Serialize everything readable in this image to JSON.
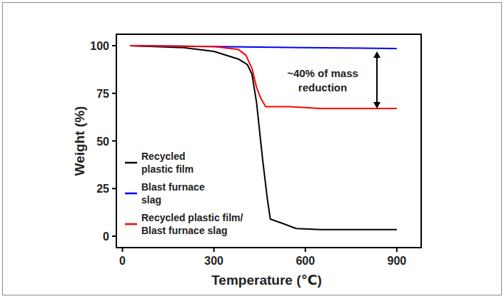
{
  "chart_data": {
    "type": "line",
    "x_label": "Temperature (℃)",
    "y_label": "Weight (%)",
    "annotation": "~40% of mass\nreduction",
    "xlim": [
      -20,
      980
    ],
    "ylim": [
      -6,
      106
    ],
    "xticks": [
      0,
      300,
      600,
      900
    ],
    "yticks": [
      0,
      25,
      50,
      75,
      100
    ],
    "grid": false,
    "legend": "lower left",
    "series": [
      {
        "name": "Recycled\nplastic film",
        "color": "#000000",
        "line_style": "solid",
        "marker": "none",
        "x": [
          25,
          200,
          300,
          380,
          410,
          425,
          440,
          460,
          475,
          485,
          520,
          570,
          650,
          900
        ],
        "values": [
          100,
          99,
          97,
          93,
          90,
          85,
          70,
          40,
          20,
          9,
          7,
          4,
          3.5,
          3.5
        ]
      },
      {
        "name": "Blast furnace\nslag",
        "color": "#0000ff",
        "line_style": "solid",
        "marker": "none",
        "x": [
          25,
          300,
          600,
          900
        ],
        "values": [
          100,
          99.5,
          99,
          98.5
        ]
      },
      {
        "name": "Recycled plastic film/\nBlast furnace slag",
        "color": "#ff0000",
        "line_style": "solid",
        "marker": "none",
        "x": [
          25,
          300,
          380,
          405,
          425,
          440,
          455,
          470,
          550,
          650,
          900
        ],
        "values": [
          100,
          99.5,
          98,
          95,
          88,
          78,
          72,
          68,
          68,
          67,
          67
        ]
      }
    ]
  }
}
